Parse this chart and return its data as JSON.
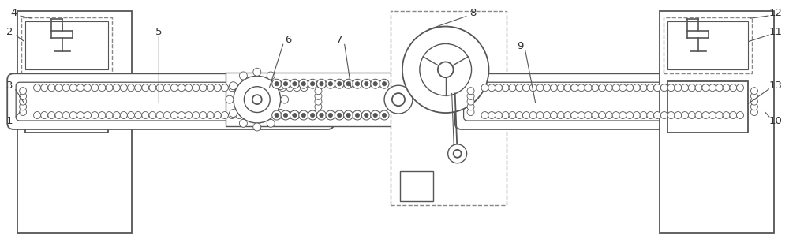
{
  "bg_color": "#ffffff",
  "line_color": "#555555",
  "dashed_color": "#888888",
  "label_color": "#333333",
  "fig_width": 10.0,
  "fig_height": 3.08,
  "dpi": 100,
  "xlim": [
    0,
    1000
  ],
  "ylim": [
    0,
    308
  ]
}
